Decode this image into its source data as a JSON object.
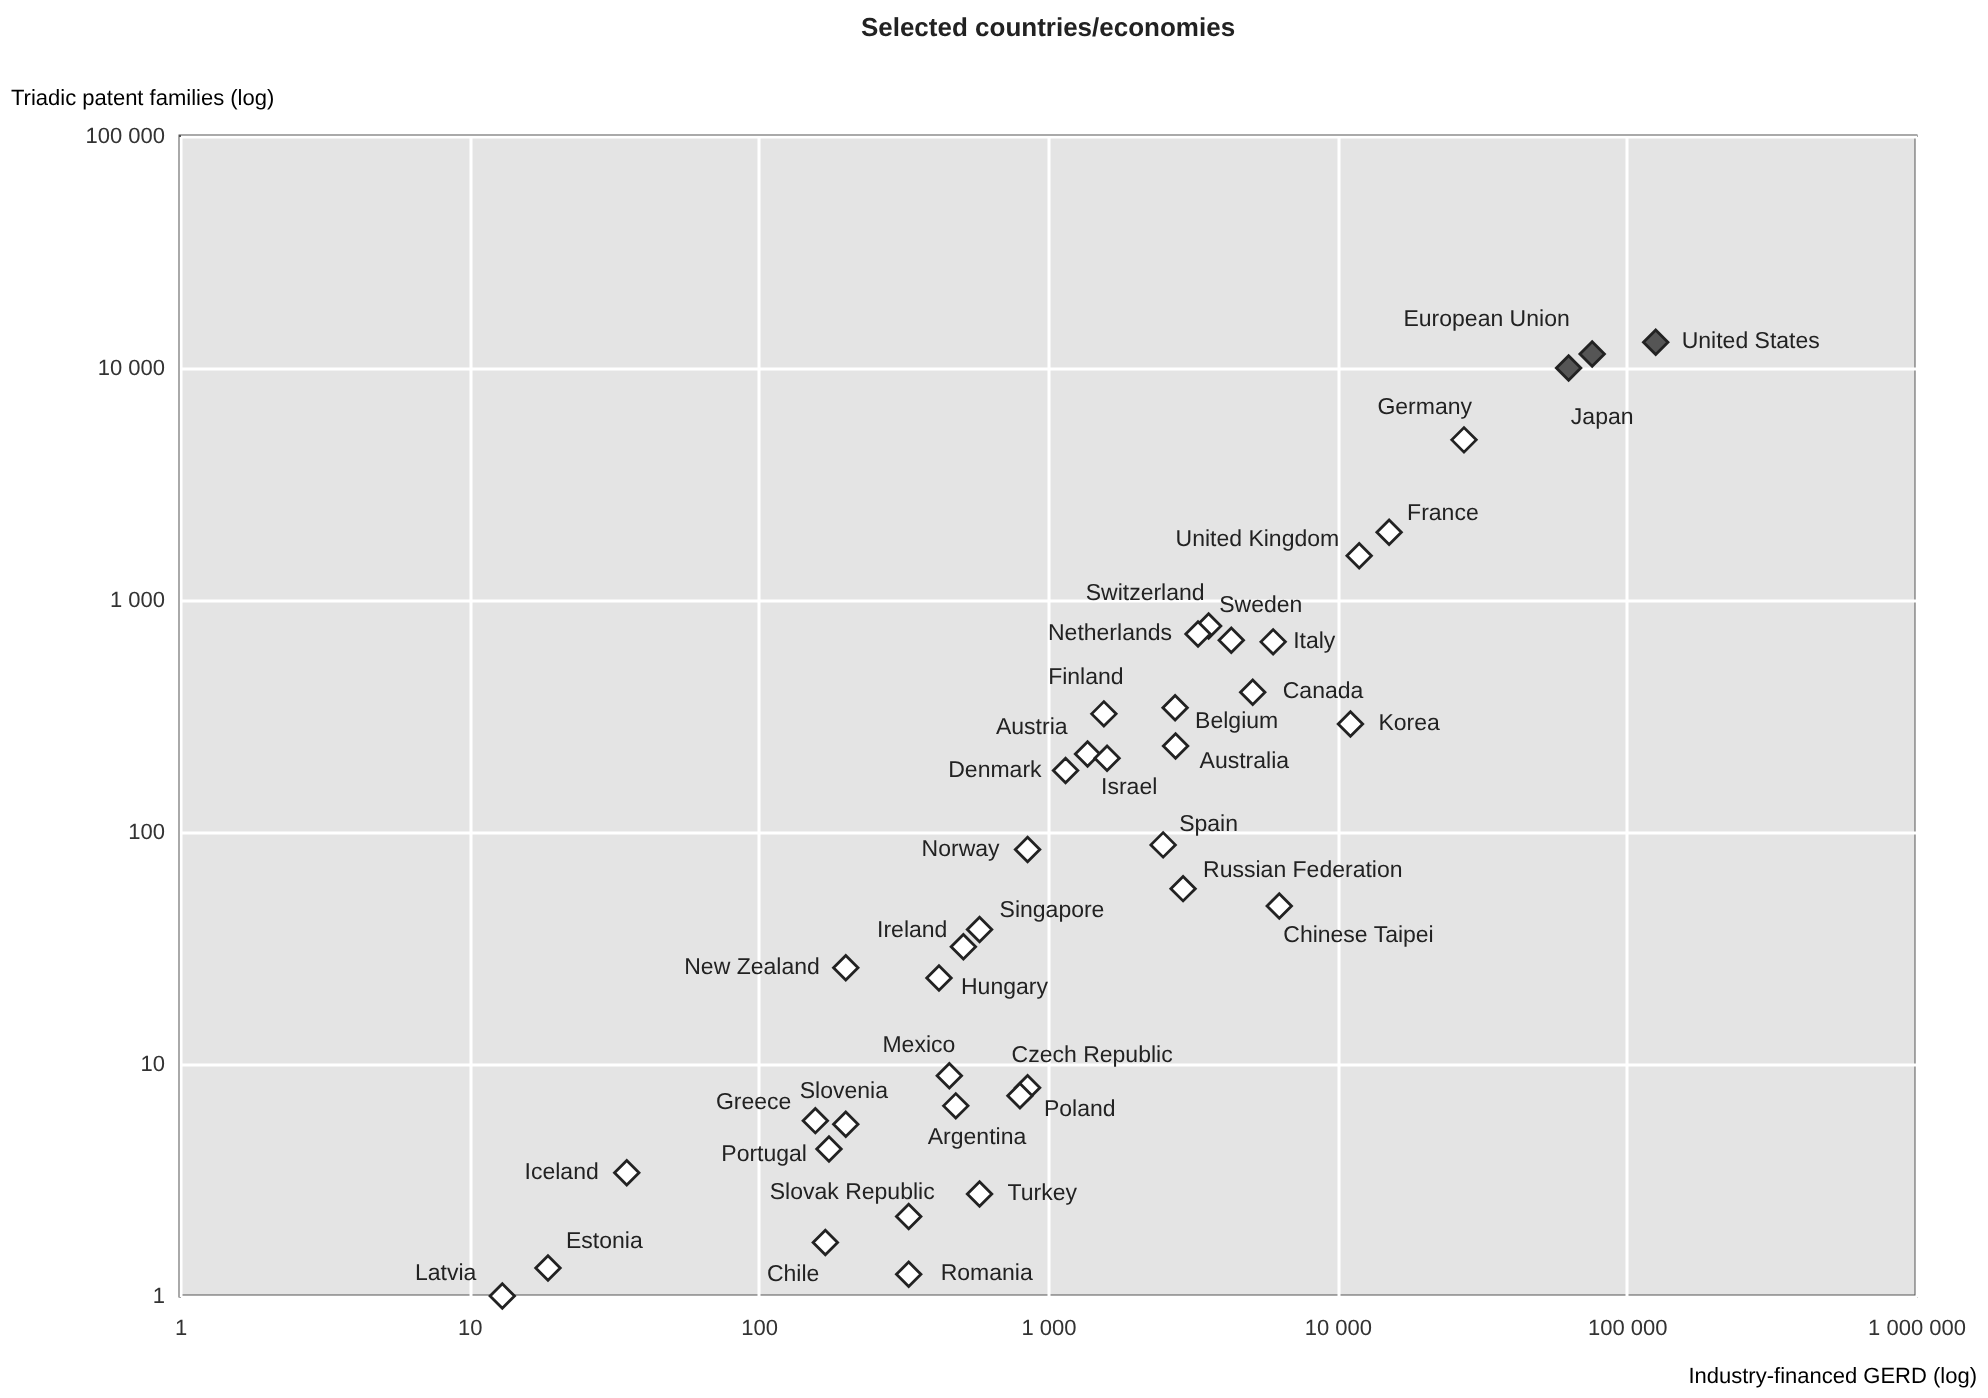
{
  "chart_data": {
    "type": "scatter",
    "title": "Selected countries/economies",
    "xlabel": "Industry-financed GERD (log)",
    "ylabel": "Triadic patent families (log)",
    "log": "xy",
    "grid": true,
    "marker": "diamond",
    "xlim": [
      1,
      1000000
    ],
    "ylim": [
      1,
      100000
    ],
    "xticks": [
      1,
      10,
      100,
      {
        "value": 1000,
        "label": "1 000"
      },
      {
        "value": 10000,
        "label": "10 000"
      },
      {
        "value": 100000,
        "label": "100 000"
      },
      {
        "value": 1000000,
        "label": "1 000 000"
      }
    ],
    "yticks": [
      1,
      10,
      100,
      {
        "value": 1000,
        "label": "1 000"
      },
      {
        "value": 10000,
        "label": "10 000"
      },
      {
        "value": 100000,
        "label": "100 000"
      }
    ],
    "series": [
      {
        "color": "#555555",
        "x": [
          63000,
          76000,
          126000
        ],
        "values": [
          10000,
          11500,
          12900
        ]
      },
      {
        "color": "#ffffff",
        "x": [
          27400,
          15100,
          11900,
          3590,
          3300,
          4300,
          6000,
          5100,
          1560,
          2750,
          11100,
          2760,
          1370,
          1600,
          1150,
          2500,
          850,
          2930,
          6300,
          580,
          510,
          200,
          420,
          456,
          480,
          850,
          800,
          157,
          200,
          175,
          35,
          580,
          330,
          170,
          330,
          18.7,
          13
        ],
        "values": [
          4900,
          1960,
          1550,
          773,
          713,
          670,
          660,
          400,
          323,
          343,
          292,
          235,
          217,
          208,
          184,
          88,
          84,
          57,
          48,
          38,
          32,
          26,
          23.5,
          8.9,
          6.6,
          7.9,
          7.3,
          5.7,
          5.5,
          4.3,
          3.4,
          2.75,
          2.2,
          1.7,
          1.24,
          1.32,
          1
        ]
      }
    ],
    "annotations": [
      {
        "text": "European Union",
        "x": 63000,
        "y": 10000
      },
      {
        "text": "Japan",
        "x": 76000,
        "y": 11500
      },
      {
        "text": "United States",
        "x": 126000,
        "y": 12900
      },
      {
        "text": "Germany",
        "x": 27400,
        "y": 4900
      },
      {
        "text": "France",
        "x": 15100,
        "y": 1960
      },
      {
        "text": "United Kingdom",
        "x": 11900,
        "y": 1550
      },
      {
        "text": "Switzerland",
        "x": 3590,
        "y": 773
      },
      {
        "text": "Netherlands",
        "x": 3300,
        "y": 713
      },
      {
        "text": "Sweden",
        "x": 4300,
        "y": 670
      },
      {
        "text": "Italy",
        "x": 6000,
        "y": 660
      },
      {
        "text": "Canada",
        "x": 5100,
        "y": 400
      },
      {
        "text": "Finland",
        "x": 1560,
        "y": 323
      },
      {
        "text": "Belgium",
        "x": 2750,
        "y": 343
      },
      {
        "text": "Korea",
        "x": 11100,
        "y": 292
      },
      {
        "text": "Australia",
        "x": 2760,
        "y": 235
      },
      {
        "text": "Austria",
        "x": 1370,
        "y": 217
      },
      {
        "text": "Israel",
        "x": 1600,
        "y": 208
      },
      {
        "text": "Denmark",
        "x": 1150,
        "y": 184
      },
      {
        "text": "Spain",
        "x": 2500,
        "y": 88
      },
      {
        "text": "Norway",
        "x": 850,
        "y": 84
      },
      {
        "text": "Russian Federation",
        "x": 2930,
        "y": 57
      },
      {
        "text": "Chinese Taipei",
        "x": 6300,
        "y": 48
      },
      {
        "text": "Singapore",
        "x": 580,
        "y": 38
      },
      {
        "text": "Ireland",
        "x": 510,
        "y": 32
      },
      {
        "text": "New Zealand",
        "x": 200,
        "y": 26
      },
      {
        "text": "Hungary",
        "x": 420,
        "y": 23.5
      },
      {
        "text": "Mexico",
        "x": 456,
        "y": 8.9
      },
      {
        "text": "Argentina",
        "x": 480,
        "y": 6.6
      },
      {
        "text": "Czech Republic",
        "x": 850,
        "y": 7.9
      },
      {
        "text": "Poland",
        "x": 800,
        "y": 7.3
      },
      {
        "text": "Greece",
        "x": 157,
        "y": 5.7
      },
      {
        "text": "Slovenia",
        "x": 200,
        "y": 5.5
      },
      {
        "text": "Portugal",
        "x": 175,
        "y": 4.3
      },
      {
        "text": "Iceland",
        "x": 35,
        "y": 3.4
      },
      {
        "text": "Turkey",
        "x": 580,
        "y": 2.75
      },
      {
        "text": "Slovak Republic",
        "x": 330,
        "y": 2.2
      },
      {
        "text": "Chile",
        "x": 170,
        "y": 1.7
      },
      {
        "text": "Romania",
        "x": 330,
        "y": 1.24
      },
      {
        "text": "Estonia",
        "x": 18.7,
        "y": 1.32
      },
      {
        "text": "Latvia",
        "x": 13,
        "y": 1
      }
    ]
  }
}
